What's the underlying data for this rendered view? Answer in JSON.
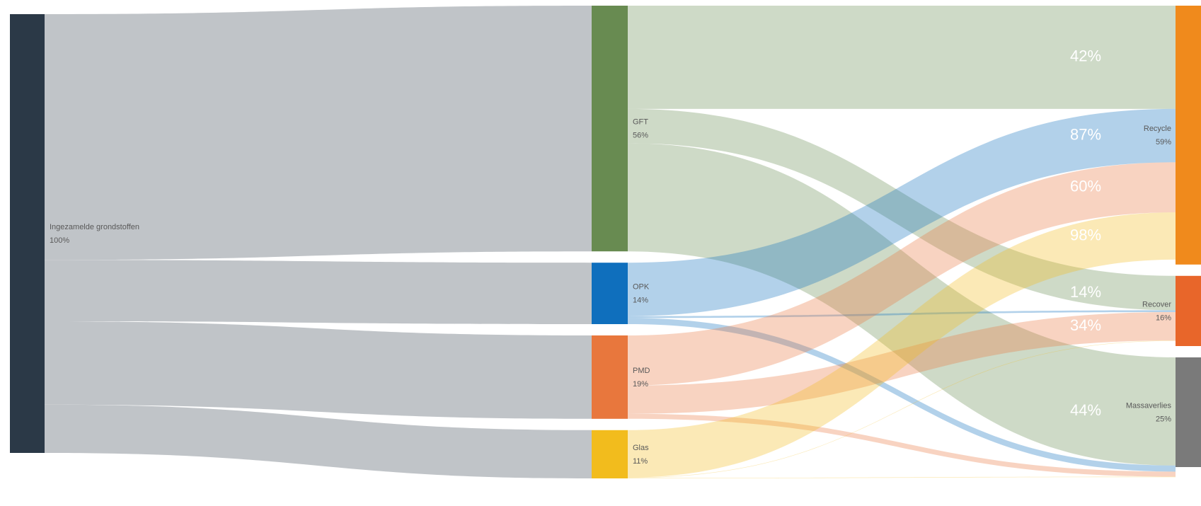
{
  "chart_data": {
    "type": "sankey",
    "nodes": [
      {
        "name": "Ingezamelde grondstoffen",
        "value": 100,
        "value_label": "100%",
        "color": "#2b3947"
      },
      {
        "name": "GFT",
        "value": 56,
        "value_label": "56%",
        "color": "#688b51"
      },
      {
        "name": "OPK",
        "value": 14,
        "value_label": "14%",
        "color": "#0f6fbd"
      },
      {
        "name": "PMD",
        "value": 19,
        "value_label": "19%",
        "color": "#e8773d"
      },
      {
        "name": "Glas",
        "value": 11,
        "value_label": "11%",
        "color": "#f2bc1d"
      },
      {
        "name": "Recycle",
        "value": 59,
        "value_label": "59%",
        "color": "#f08a1c"
      },
      {
        "name": "Recover",
        "value": 16,
        "value_label": "16%",
        "color": "#e8662a"
      },
      {
        "name": "Massaverlies",
        "value": 25,
        "value_label": "25%",
        "color": "#7a7a7a"
      }
    ],
    "links": [
      {
        "source": "Ingezamelde grondstoffen",
        "target": "GFT",
        "value": 56,
        "color": "#c0c4c8"
      },
      {
        "source": "Ingezamelde grondstoffen",
        "target": "OPK",
        "value": 14,
        "color": "#c0c4c8"
      },
      {
        "source": "Ingezamelde grondstoffen",
        "target": "PMD",
        "value": 19,
        "color": "#c0c4c8"
      },
      {
        "source": "Ingezamelde grondstoffen",
        "target": "Glas",
        "value": 11,
        "color": "#c0c4c8"
      },
      {
        "source": "GFT",
        "target": "Recycle",
        "value": 42,
        "value_label": "42%",
        "color": "#688b51"
      },
      {
        "source": "GFT",
        "target": "Recover",
        "value": 14,
        "value_label": "14%",
        "color": "#688b51"
      },
      {
        "source": "GFT",
        "target": "Massaverlies",
        "value": 44,
        "value_label": "44%",
        "color": "#688b51"
      },
      {
        "source": "OPK",
        "target": "Recycle",
        "value": 87,
        "value_label": "87%",
        "color": "#0f6fbd"
      },
      {
        "source": "OPK",
        "target": "Recover",
        "value": 3,
        "color": "#0f6fbd"
      },
      {
        "source": "OPK",
        "target": "Massaverlies",
        "value": 10,
        "color": "#0f6fbd"
      },
      {
        "source": "PMD",
        "target": "Recycle",
        "value": 60,
        "value_label": "60%",
        "color": "#e8773d"
      },
      {
        "source": "PMD",
        "target": "Recover",
        "value": 34,
        "value_label": "34%",
        "color": "#e8773d"
      },
      {
        "source": "PMD",
        "target": "Massaverlies",
        "value": 6,
        "color": "#e8773d"
      },
      {
        "source": "Glas",
        "target": "Recycle",
        "value": 98,
        "value_label": "98%",
        "color": "#f2bc1d"
      },
      {
        "source": "Glas",
        "target": "Recover",
        "value": 1,
        "color": "#f2bc1d"
      },
      {
        "source": "Glas",
        "target": "Massaverlies",
        "value": 1,
        "color": "#f2bc1d"
      }
    ]
  }
}
